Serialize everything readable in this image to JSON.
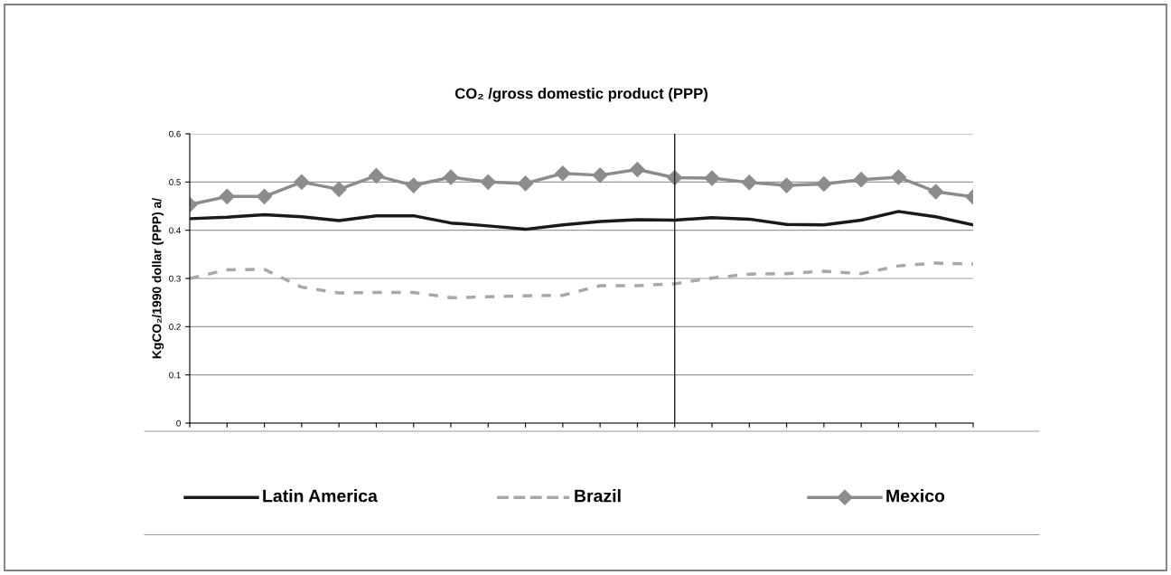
{
  "chart_data": {
    "type": "line",
    "title": "CO₂ /gross domestic product (PPP)",
    "ylabel": "KgCO₂/1990 dollar (PPP) a/",
    "categories": [
      null,
      null,
      null,
      null,
      null,
      null,
      null,
      null,
      null,
      null,
      null,
      null,
      null,
      null,
      null,
      null,
      null,
      null,
      null,
      null,
      null,
      null
    ],
    "series": [
      {
        "name": "Latin America",
        "color": "#1a1a1a",
        "line_style": "solid",
        "marker": "none",
        "values": [
          0.424,
          0.427,
          0.432,
          0.428,
          0.42,
          0.43,
          0.43,
          0.415,
          0.409,
          0.402,
          0.411,
          0.418,
          0.422,
          0.421,
          0.426,
          0.423,
          0.412,
          0.411,
          0.421,
          0.439,
          0.428,
          0.411
        ]
      },
      {
        "name": "Brazil",
        "color": "#a8a8a8",
        "line_style": "dashed",
        "marker": "none",
        "values": [
          0.3,
          0.318,
          0.319,
          0.282,
          0.27,
          0.271,
          0.271,
          0.26,
          0.262,
          0.264,
          0.265,
          0.285,
          0.285,
          0.289,
          0.301,
          0.309,
          0.31,
          0.315,
          0.31,
          0.326,
          0.332,
          0.33
        ]
      },
      {
        "name": "Mexico",
        "color": "#8c8c8c",
        "line_style": "solid",
        "marker": "diamond",
        "values": [
          0.453,
          0.47,
          0.47,
          0.5,
          0.485,
          0.513,
          0.493,
          0.51,
          0.5,
          0.497,
          0.518,
          0.514,
          0.526,
          0.509,
          0.508,
          0.499,
          0.493,
          0.496,
          0.505,
          0.51,
          0.48,
          0.469
        ]
      }
    ],
    "ylim": [
      0,
      0.6
    ],
    "yticks": [
      0,
      0.1,
      0.2,
      0.3,
      0.4,
      0.5,
      0.6
    ],
    "grid": "y",
    "legend": "bottom"
  }
}
